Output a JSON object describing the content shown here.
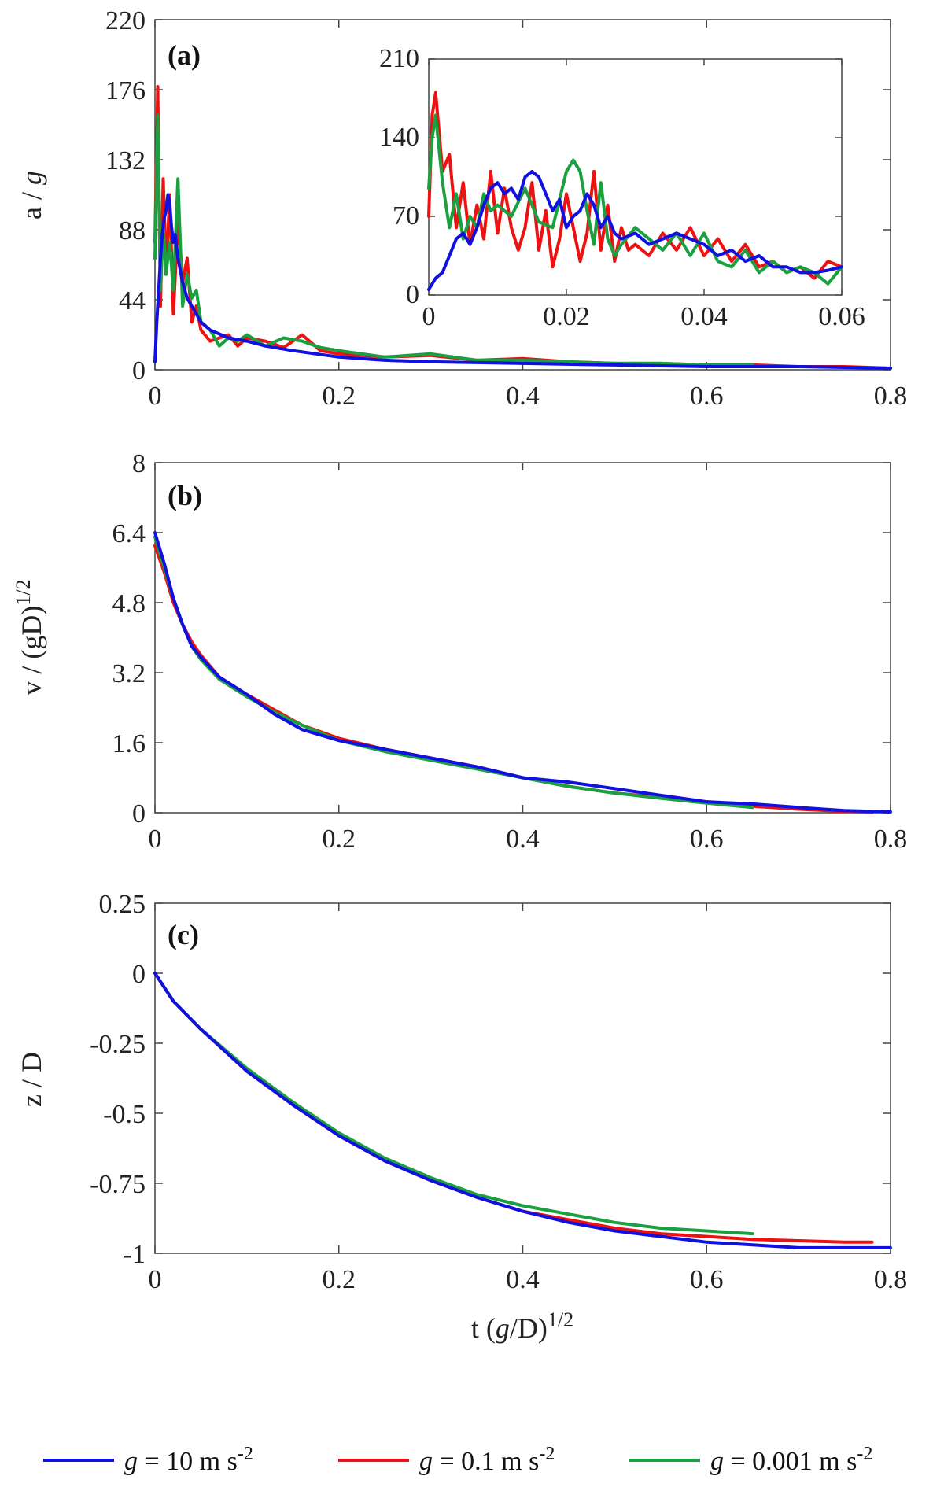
{
  "colors": {
    "g10": "#1010e0",
    "g01": "#ee1111",
    "g0001": "#1aa040"
  },
  "legend": [
    {
      "key": "g10",
      "prefix": "g",
      "text": " = 10 m s",
      "sup": "-2"
    },
    {
      "key": "g01",
      "prefix": "g",
      "text": " = 0.1 m s",
      "sup": "-2"
    },
    {
      "key": "g0001",
      "prefix": "g",
      "text": " = 0.001 m s",
      "sup": "-2"
    }
  ],
  "chart_data": [
    {
      "id": "a",
      "type": "line",
      "panel_label": "(a)",
      "ylabel": {
        "main": "a / ",
        "italic": "g"
      },
      "xlim": [
        0,
        0.8
      ],
      "ylim": [
        0,
        220
      ],
      "xticks": [
        "0",
        "0.2",
        "0.4",
        "0.6",
        "0.8"
      ],
      "yticks": [
        "0",
        "44",
        "88",
        "132",
        "176",
        "220"
      ],
      "series": [
        {
          "key": "g01",
          "name": "g = 0.1 m s-2",
          "x": [
            0,
            0.003,
            0.006,
            0.009,
            0.012,
            0.016,
            0.02,
            0.025,
            0.03,
            0.035,
            0.04,
            0.045,
            0.05,
            0.06,
            0.07,
            0.08,
            0.09,
            0.1,
            0.12,
            0.14,
            0.16,
            0.18,
            0.2,
            0.25,
            0.3,
            0.35,
            0.4,
            0.45,
            0.5,
            0.55,
            0.6,
            0.65,
            0.7,
            0.75,
            0.8
          ],
          "y": [
            80,
            178,
            40,
            120,
            60,
            110,
            35,
            95,
            55,
            70,
            30,
            40,
            25,
            18,
            20,
            22,
            15,
            20,
            18,
            14,
            22,
            12,
            10,
            8,
            9,
            6,
            7,
            5,
            4,
            4,
            3,
            3,
            2,
            2,
            1
          ]
        },
        {
          "key": "g0001",
          "name": "g = 0.001 m s-2",
          "x": [
            0,
            0.003,
            0.006,
            0.009,
            0.012,
            0.016,
            0.02,
            0.025,
            0.03,
            0.035,
            0.04,
            0.045,
            0.05,
            0.06,
            0.07,
            0.08,
            0.09,
            0.1,
            0.12,
            0.14,
            0.16,
            0.18,
            0.2,
            0.25,
            0.3,
            0.35,
            0.4,
            0.45,
            0.5,
            0.55,
            0.6,
            0.65
          ],
          "y": [
            70,
            160,
            50,
            90,
            60,
            80,
            50,
            120,
            40,
            60,
            45,
            50,
            30,
            25,
            15,
            20,
            18,
            22,
            15,
            20,
            18,
            14,
            12,
            8,
            10,
            6,
            6,
            5,
            4,
            4,
            3,
            3
          ]
        },
        {
          "key": "g10",
          "name": "g = 10 m s-2",
          "x": [
            0,
            0.002,
            0.004,
            0.006,
            0.008,
            0.01,
            0.012,
            0.014,
            0.016,
            0.018,
            0.02,
            0.022,
            0.025,
            0.03,
            0.035,
            0.04,
            0.05,
            0.06,
            0.08,
            0.1,
            0.12,
            0.15,
            0.2,
            0.25,
            0.3,
            0.4,
            0.5,
            0.6,
            0.7,
            0.8
          ],
          "y": [
            5,
            30,
            50,
            70,
            85,
            95,
            100,
            110,
            105,
            90,
            80,
            85,
            70,
            55,
            45,
            40,
            30,
            25,
            20,
            18,
            15,
            12,
            8,
            6,
            5,
            4,
            3,
            2,
            2,
            1
          ]
        }
      ]
    },
    {
      "id": "a_inset",
      "type": "line",
      "xlim": [
        0,
        0.06
      ],
      "ylim": [
        0,
        210
      ],
      "xticks": [
        "0",
        "0.02",
        "0.04",
        "0.06"
      ],
      "yticks": [
        "0",
        "70",
        "140",
        "210"
      ],
      "series": [
        {
          "key": "g01",
          "name": "g = 0.1 m s-2",
          "x": [
            0,
            0.0005,
            0.001,
            0.002,
            0.003,
            0.004,
            0.005,
            0.006,
            0.007,
            0.008,
            0.009,
            0.01,
            0.011,
            0.012,
            0.013,
            0.014,
            0.015,
            0.016,
            0.017,
            0.018,
            0.019,
            0.02,
            0.021,
            0.022,
            0.023,
            0.024,
            0.025,
            0.026,
            0.027,
            0.028,
            0.029,
            0.03,
            0.032,
            0.034,
            0.036,
            0.038,
            0.04,
            0.042,
            0.044,
            0.046,
            0.048,
            0.05,
            0.052,
            0.054,
            0.056,
            0.058,
            0.06
          ],
          "y": [
            70,
            160,
            180,
            110,
            125,
            60,
            100,
            45,
            80,
            50,
            110,
            55,
            95,
            60,
            40,
            60,
            100,
            40,
            75,
            25,
            50,
            90,
            60,
            30,
            55,
            110,
            40,
            80,
            30,
            60,
            40,
            45,
            35,
            55,
            40,
            60,
            35,
            50,
            30,
            45,
            25,
            30,
            20,
            25,
            15,
            30,
            25
          ]
        },
        {
          "key": "g0001",
          "name": "g = 0.001 m s-2",
          "x": [
            0,
            0.0005,
            0.001,
            0.002,
            0.003,
            0.004,
            0.005,
            0.006,
            0.007,
            0.008,
            0.009,
            0.01,
            0.012,
            0.014,
            0.016,
            0.018,
            0.02,
            0.021,
            0.022,
            0.023,
            0.024,
            0.025,
            0.026,
            0.027,
            0.028,
            0.03,
            0.032,
            0.034,
            0.036,
            0.038,
            0.04,
            0.042,
            0.044,
            0.046,
            0.048,
            0.05,
            0.052,
            0.054,
            0.056,
            0.058,
            0.06
          ],
          "y": [
            95,
            140,
            160,
            100,
            60,
            90,
            50,
            70,
            60,
            90,
            75,
            80,
            70,
            95,
            65,
            60,
            110,
            120,
            110,
            75,
            45,
            100,
            50,
            35,
            45,
            60,
            50,
            40,
            55,
            35,
            55,
            30,
            25,
            40,
            20,
            30,
            20,
            25,
            20,
            10,
            25
          ]
        },
        {
          "key": "g10",
          "name": "g = 10 m s-2",
          "x": [
            0,
            0.001,
            0.002,
            0.003,
            0.004,
            0.005,
            0.006,
            0.007,
            0.008,
            0.009,
            0.01,
            0.011,
            0.012,
            0.013,
            0.014,
            0.015,
            0.016,
            0.017,
            0.018,
            0.019,
            0.02,
            0.021,
            0.022,
            0.023,
            0.024,
            0.025,
            0.026,
            0.027,
            0.028,
            0.03,
            0.032,
            0.034,
            0.036,
            0.038,
            0.04,
            0.042,
            0.044,
            0.046,
            0.048,
            0.05,
            0.052,
            0.054,
            0.056,
            0.058,
            0.06
          ],
          "y": [
            5,
            15,
            20,
            35,
            50,
            55,
            45,
            60,
            80,
            95,
            100,
            90,
            95,
            85,
            105,
            110,
            105,
            90,
            75,
            85,
            60,
            70,
            75,
            90,
            80,
            60,
            70,
            55,
            50,
            55,
            45,
            50,
            55,
            50,
            45,
            35,
            40,
            30,
            35,
            25,
            25,
            20,
            20,
            22,
            25
          ]
        }
      ]
    },
    {
      "id": "b",
      "type": "line",
      "panel_label": "(b)",
      "ylabel": {
        "main": "v / (gD)",
        "sup": "1/2"
      },
      "xlim": [
        0,
        0.8
      ],
      "ylim": [
        0,
        8
      ],
      "xticks": [
        "0",
        "0.2",
        "0.4",
        "0.6",
        "0.8"
      ],
      "yticks": [
        "0",
        "1.6",
        "3.2",
        "4.8",
        "6.4",
        "8"
      ],
      "series": [
        {
          "key": "g01",
          "name": "g = 0.1 m s-2",
          "x": [
            0,
            0.01,
            0.02,
            0.03,
            0.04,
            0.05,
            0.07,
            0.1,
            0.13,
            0.16,
            0.2,
            0.25,
            0.3,
            0.35,
            0.4,
            0.45,
            0.5,
            0.55,
            0.6,
            0.65,
            0.7,
            0.75,
            0.78
          ],
          "y": [
            6.1,
            5.5,
            4.8,
            4.3,
            3.9,
            3.6,
            3.1,
            2.7,
            2.35,
            2.0,
            1.7,
            1.45,
            1.25,
            1.05,
            0.8,
            0.6,
            0.45,
            0.35,
            0.25,
            0.15,
            0.08,
            0.03,
            0.01
          ]
        },
        {
          "key": "g0001",
          "name": "g = 0.001 m s-2",
          "x": [
            0,
            0.01,
            0.02,
            0.03,
            0.04,
            0.05,
            0.07,
            0.1,
            0.13,
            0.16,
            0.2,
            0.25,
            0.3,
            0.35,
            0.4,
            0.45,
            0.5,
            0.55,
            0.6,
            0.65
          ],
          "y": [
            6.3,
            5.6,
            4.9,
            4.3,
            3.8,
            3.5,
            3.05,
            2.65,
            2.3,
            2.0,
            1.65,
            1.4,
            1.2,
            1.0,
            0.8,
            0.6,
            0.45,
            0.33,
            0.22,
            0.12
          ]
        },
        {
          "key": "g10",
          "name": "g = 10 m s-2",
          "x": [
            0,
            0.01,
            0.02,
            0.03,
            0.04,
            0.05,
            0.07,
            0.1,
            0.13,
            0.16,
            0.2,
            0.25,
            0.3,
            0.35,
            0.4,
            0.45,
            0.5,
            0.55,
            0.6,
            0.65,
            0.7,
            0.75,
            0.8
          ],
          "y": [
            6.4,
            5.7,
            4.9,
            4.3,
            3.8,
            3.55,
            3.1,
            2.7,
            2.25,
            1.9,
            1.65,
            1.45,
            1.25,
            1.05,
            0.8,
            0.7,
            0.55,
            0.4,
            0.25,
            0.2,
            0.12,
            0.05,
            0.02
          ]
        }
      ]
    },
    {
      "id": "c",
      "type": "line",
      "panel_label": "(c)",
      "ylabel": {
        "main": "z / D"
      },
      "xlabel": {
        "main": "t (",
        "italic": "g",
        "rest": "/D)",
        "sup": "1/2"
      },
      "xlim": [
        0,
        0.8
      ],
      "ylim": [
        -1,
        0.25
      ],
      "xticks": [
        "0",
        "0.2",
        "0.4",
        "0.6",
        "0.8"
      ],
      "yticks": [
        "-1",
        "-0.75",
        "-0.5",
        "-0.25",
        "0",
        "0.25"
      ],
      "series": [
        {
          "key": "g01",
          "name": "g = 0.1 m s-2",
          "x": [
            0,
            0.02,
            0.05,
            0.1,
            0.15,
            0.2,
            0.25,
            0.3,
            0.35,
            0.4,
            0.45,
            0.5,
            0.55,
            0.6,
            0.65,
            0.7,
            0.75,
            0.78
          ],
          "y": [
            0,
            -0.1,
            -0.2,
            -0.35,
            -0.47,
            -0.58,
            -0.67,
            -0.74,
            -0.8,
            -0.85,
            -0.88,
            -0.91,
            -0.93,
            -0.94,
            -0.95,
            -0.955,
            -0.96,
            -0.96
          ]
        },
        {
          "key": "g0001",
          "name": "g = 0.001 m s-2",
          "x": [
            0,
            0.02,
            0.05,
            0.1,
            0.15,
            0.2,
            0.25,
            0.3,
            0.35,
            0.4,
            0.45,
            0.5,
            0.55,
            0.6,
            0.65
          ],
          "y": [
            0,
            -0.1,
            -0.2,
            -0.34,
            -0.46,
            -0.57,
            -0.66,
            -0.73,
            -0.79,
            -0.83,
            -0.86,
            -0.89,
            -0.91,
            -0.92,
            -0.93
          ]
        },
        {
          "key": "g10",
          "name": "g = 10 m s-2",
          "x": [
            0,
            0.02,
            0.05,
            0.1,
            0.15,
            0.2,
            0.25,
            0.3,
            0.35,
            0.4,
            0.45,
            0.5,
            0.55,
            0.6,
            0.65,
            0.7,
            0.75,
            0.8
          ],
          "y": [
            0,
            -0.1,
            -0.2,
            -0.35,
            -0.47,
            -0.58,
            -0.67,
            -0.74,
            -0.8,
            -0.85,
            -0.89,
            -0.92,
            -0.94,
            -0.96,
            -0.97,
            -0.98,
            -0.98,
            -0.98
          ]
        }
      ]
    }
  ]
}
